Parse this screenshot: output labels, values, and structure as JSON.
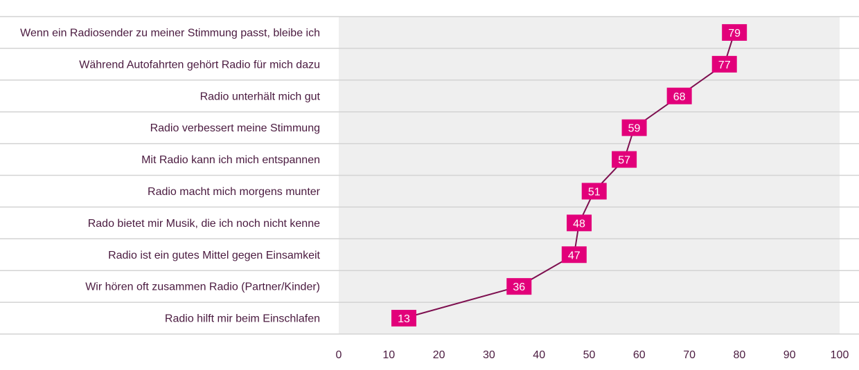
{
  "chart_data": {
    "type": "line",
    "orientation": "horizontal",
    "categories": [
      "Wenn ein Radiosender zu meiner Stimmung passt, bleibe ich",
      "Während Autofahrten gehört Radio für mich dazu",
      "Radio unterhält mich gut",
      "Radio verbessert meine Stimmung",
      "Mit Radio kann ich mich entspannen",
      "Radio macht mich morgens munter",
      "Rado bietet mir Musik, die ich noch nicht kenne",
      "Radio ist ein gutes Mittel gegen Einsamkeit",
      "Wir hören oft zusammen Radio (Partner/Kinder)",
      "Radio hilft mir beim Einschlafen"
    ],
    "values": [
      79,
      77,
      68,
      59,
      57,
      51,
      48,
      47,
      36,
      13
    ],
    "value_labels": [
      "79",
      "77",
      "68",
      "59",
      "57",
      "51",
      "48",
      "47",
      "36",
      "13"
    ],
    "xlim": [
      0,
      100
    ],
    "xticks": [
      0,
      10,
      20,
      30,
      40,
      50,
      60,
      70,
      80,
      90,
      100
    ],
    "xtick_labels": [
      "0",
      "10",
      "20",
      "30",
      "40",
      "50",
      "60",
      "70",
      "80",
      "90",
      "100"
    ],
    "title": "",
    "xlabel": "",
    "ylabel": "",
    "grid": true,
    "legend": "none",
    "colors": {
      "marker": "#e2007a",
      "line": "#7d0f4f",
      "text": "#4a1a3f",
      "plot_background": "#efefef",
      "gridline": "#d3d3d3",
      "value_text": "#ffffff"
    }
  }
}
